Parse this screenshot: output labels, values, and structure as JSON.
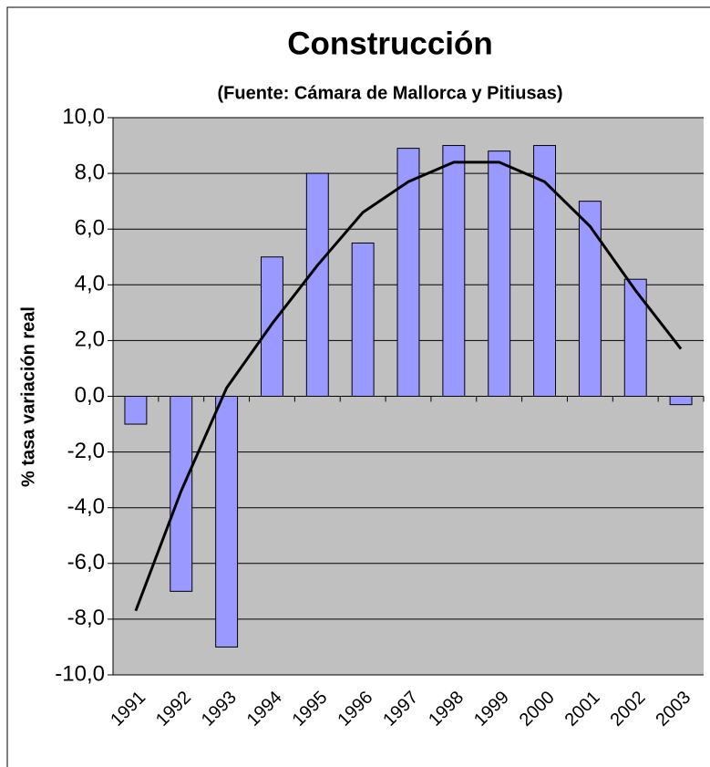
{
  "chart_data": {
    "type": "bar",
    "title": "Construcción",
    "subtitle": "(Fuente: Cámara de Mallorca y Pitiusas)",
    "ylabel": "% tasa variación real",
    "categories": [
      "1991",
      "1992",
      "1993",
      "1994",
      "1995",
      "1996",
      "1997",
      "1998",
      "1999",
      "2000",
      "2001",
      "2002",
      "2003"
    ],
    "series": [
      {
        "type": "bar",
        "color": "#9999ff",
        "values": [
          -1.0,
          -7.0,
          -9.0,
          5.0,
          8.0,
          5.5,
          8.9,
          9.0,
          8.8,
          9.0,
          7.0,
          4.2,
          -0.3
        ]
      },
      {
        "type": "line",
        "color": "#000000",
        "values": [
          -7.7,
          -3.4,
          0.3,
          2.6,
          4.7,
          6.6,
          7.7,
          8.4,
          8.4,
          7.7,
          6.1,
          3.8,
          1.7
        ]
      }
    ],
    "ylim": [
      -10,
      10
    ],
    "yticks": [
      {
        "value": -10,
        "label": "-10,0"
      },
      {
        "value": -8,
        "label": "-8,0"
      },
      {
        "value": -6,
        "label": "-6,0"
      },
      {
        "value": -4,
        "label": "-4,0"
      },
      {
        "value": -2,
        "label": "-2,0"
      },
      {
        "value": 0,
        "label": "0,0"
      },
      {
        "value": 2,
        "label": "2,0"
      },
      {
        "value": 4,
        "label": "4,0"
      },
      {
        "value": 6,
        "label": "6,0"
      },
      {
        "value": 8,
        "label": "8,0"
      },
      {
        "value": 10,
        "label": "10,0"
      }
    ],
    "grid": true,
    "plot_background": "#c0c0c0"
  }
}
